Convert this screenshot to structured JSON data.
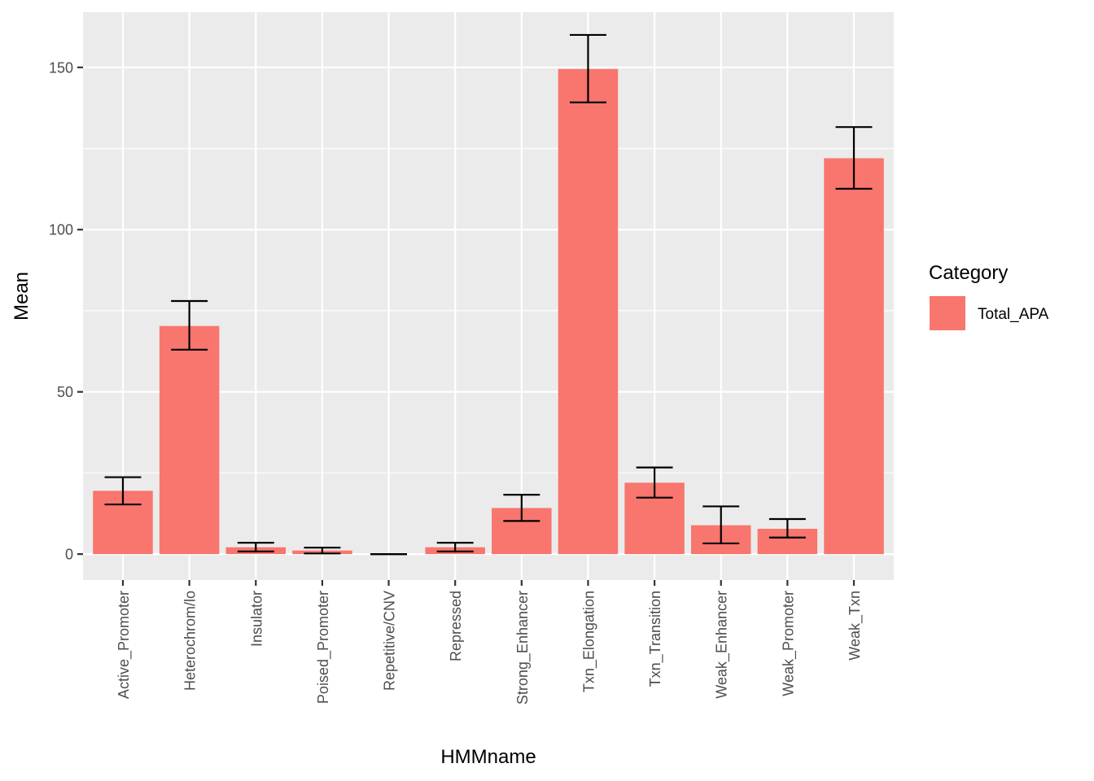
{
  "chart_data": {
    "type": "bar",
    "xlabel": "HMMname",
    "ylabel": "Mean",
    "ylim": [
      -8,
      167
    ],
    "yticks": [
      0,
      50,
      100,
      150
    ],
    "categories": [
      "Active_Promoter",
      "Heterochrom/lo",
      "Insulator",
      "Poised_Promoter",
      "Repetitive/CNV",
      "Repressed",
      "Strong_Enhancer",
      "Txn_Elongation",
      "Txn_Transition",
      "Weak_Enhancer",
      "Weak_Promoter",
      "Weak_Txn"
    ],
    "series": [
      {
        "name": "Total_APA",
        "color": "#F8766D",
        "values": [
          19.5,
          70.3,
          2.1,
          1.1,
          0.0,
          2.1,
          14.2,
          149.5,
          22.0,
          8.9,
          7.8,
          122.0
        ],
        "error_low": [
          15.3,
          63.0,
          0.8,
          0.2,
          0.0,
          0.8,
          10.2,
          139.2,
          17.4,
          3.3,
          5.1,
          112.6
        ],
        "error_high": [
          23.7,
          78.0,
          3.5,
          2.0,
          0.0,
          3.5,
          18.3,
          160.0,
          26.7,
          14.7,
          10.8,
          131.6
        ]
      }
    ],
    "legend": {
      "title": "Category",
      "placement": "right"
    },
    "grid": true,
    "colors": {
      "panel_background": "#EBEBEB",
      "grid_line": "#FFFFFF",
      "error_bar": "#000000"
    }
  }
}
